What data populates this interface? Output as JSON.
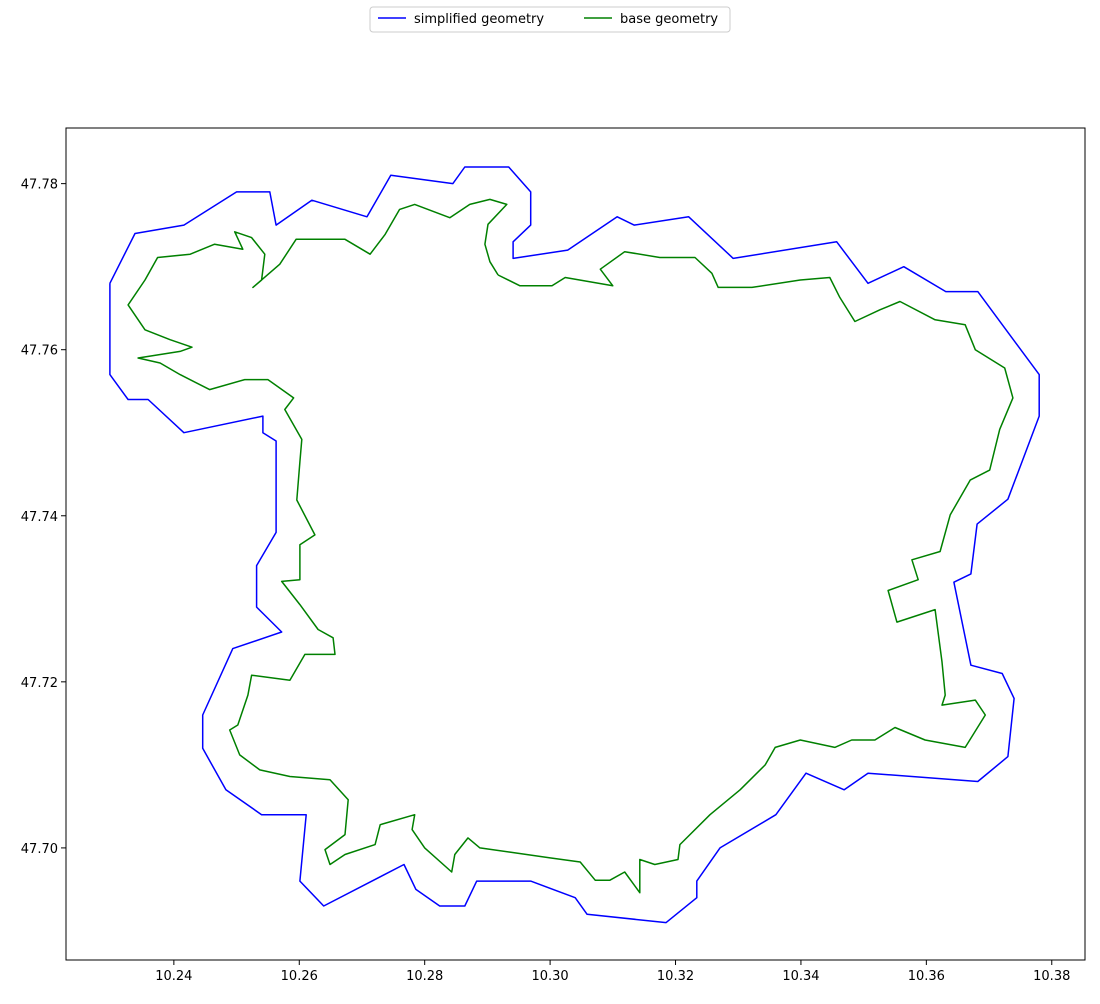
{
  "chart_data": {
    "type": "line",
    "legend": "upper center",
    "xlim": [
      10.2228,
      10.3853
    ],
    "ylim": [
      47.6865,
      47.7867
    ],
    "xticks": [
      10.24,
      10.26,
      10.28,
      {
        "value": 10.3,
        "label": "10.30"
      },
      10.32,
      10.34,
      10.36,
      10.38
    ],
    "yticks": [
      {
        "value": 47.7,
        "label": "47.70"
      },
      47.72,
      47.74,
      47.76,
      47.78
    ],
    "series": [
      {
        "name": "simplified geometry",
        "color": "#0000ff",
        "x": [
          10.2298,
          10.2298,
          10.2327,
          10.2359,
          10.2416,
          10.2542,
          10.2542,
          10.2563,
          10.2563,
          10.2532,
          10.2532,
          10.2572,
          10.2494,
          10.2446,
          10.2446,
          10.2483,
          10.254,
          10.2611,
          10.2601,
          10.2639,
          10.2767,
          10.2786,
          10.2824,
          10.2864,
          10.2883,
          10.2969,
          10.304,
          10.3059,
          10.3185,
          10.3234,
          10.3234,
          10.3271,
          10.336,
          10.3408,
          10.3469,
          10.3507,
          10.3682,
          10.373,
          10.374,
          10.3721,
          10.3671,
          10.3644,
          10.3671,
          10.3681,
          10.373,
          10.378,
          10.378,
          10.3682,
          10.3631,
          10.3564,
          10.3507,
          10.3457,
          10.3292,
          10.3221,
          10.3134,
          10.3107,
          10.3028,
          10.2941,
          10.2941,
          10.2969,
          10.2969,
          10.2934,
          10.2864,
          10.2845,
          10.2746,
          10.2708,
          10.262,
          10.2563,
          10.2553,
          10.25,
          10.2416,
          10.2338,
          10.2298
        ],
        "values": [
          47.768,
          47.757,
          47.754,
          47.754,
          47.75,
          47.752,
          47.75,
          47.749,
          47.738,
          47.734,
          47.729,
          47.726,
          47.724,
          47.716,
          47.712,
          47.707,
          47.704,
          47.704,
          47.696,
          47.693,
          47.698,
          47.695,
          47.693,
          47.693,
          47.696,
          47.696,
          47.694,
          47.692,
          47.691,
          47.694,
          47.696,
          47.7,
          47.704,
          47.709,
          47.707,
          47.709,
          47.708,
          47.711,
          47.718,
          47.721,
          47.722,
          47.732,
          47.733,
          47.739,
          47.742,
          47.752,
          47.757,
          47.767,
          47.767,
          47.77,
          47.768,
          47.773,
          47.771,
          47.776,
          47.775,
          47.776,
          47.772,
          47.771,
          47.773,
          47.775,
          47.779,
          47.782,
          47.782,
          47.78,
          47.781,
          47.776,
          47.778,
          47.775,
          47.779,
          47.779,
          47.775,
          47.774,
          47.768
        ]
      },
      {
        "name": "base geometry",
        "color": "#008000",
        "x": [
          10.2917,
          10.2952,
          10.3003,
          10.3024,
          10.31,
          10.308,
          10.3119,
          10.3175,
          10.3231,
          10.3258,
          10.3268,
          10.3322,
          10.3399,
          10.3446,
          10.3462,
          10.3486,
          10.3526,
          10.3558,
          10.3614,
          10.3662,
          10.3678,
          10.3725,
          10.3738,
          10.3717,
          10.3701,
          10.367,
          10.3638,
          10.3622,
          10.3577,
          10.3587,
          10.3539,
          10.3553,
          10.3614,
          10.3625,
          10.363,
          10.3625,
          10.3678,
          10.3694,
          10.3662,
          10.3598,
          10.355,
          10.3518,
          10.3481,
          10.3454,
          10.3399,
          10.3359,
          10.3343,
          10.3303,
          10.3255,
          10.3207,
          10.3204,
          10.3167,
          10.3143,
          10.3143,
          10.3119,
          10.3095,
          10.3072,
          10.3048,
          10.3,
          10.2936,
          10.2888,
          10.2869,
          10.2848,
          10.2843,
          10.28,
          10.278,
          10.2784,
          10.2729,
          10.2721,
          10.2673,
          10.2649,
          10.2641,
          10.2673,
          10.2678,
          10.2649,
          10.2585,
          10.2537,
          10.2505,
          10.2489,
          10.2502,
          10.2518,
          10.2524,
          10.2585,
          10.2609,
          10.2657,
          10.2654,
          10.263,
          10.2601,
          10.2572,
          10.2601,
          10.2601,
          10.2625,
          10.2596,
          10.2601,
          10.2604,
          10.2577,
          10.2591,
          10.255,
          10.2513,
          10.2457,
          10.241,
          10.2378,
          10.2343,
          10.241,
          10.2429,
          10.2394,
          10.2354,
          10.2327,
          10.2354,
          10.2374,
          10.2426,
          10.2465,
          10.251,
          10.2497,
          10.2524,
          10.2545,
          10.254,
          10.2526,
          10.2569,
          10.2595,
          10.2641,
          10.2673,
          10.2713,
          10.2737,
          10.276,
          10.2784,
          10.284,
          10.2872,
          10.2904,
          10.2931,
          10.2901,
          10.2896,
          10.2904,
          10.2917
        ],
        "values": [
          47.769,
          47.7677,
          47.7677,
          47.7687,
          47.7677,
          47.7697,
          47.7718,
          47.7711,
          47.7711,
          47.7692,
          47.7675,
          47.7675,
          47.7684,
          47.7687,
          47.7663,
          47.7634,
          47.7648,
          47.7658,
          47.7636,
          47.763,
          47.76,
          47.7578,
          47.7542,
          47.7504,
          47.7455,
          47.7443,
          47.7401,
          47.7357,
          47.7347,
          47.7323,
          47.731,
          47.7272,
          47.7287,
          47.7224,
          47.7184,
          47.7172,
          47.7178,
          47.716,
          47.7121,
          47.713,
          47.7145,
          47.713,
          47.713,
          47.7121,
          47.713,
          47.7121,
          47.71,
          47.707,
          47.704,
          47.7004,
          47.6986,
          47.698,
          47.6986,
          47.6946,
          47.6971,
          47.6961,
          47.6961,
          47.6983,
          47.6988,
          47.6995,
          47.7,
          47.7012,
          47.6992,
          47.6971,
          47.7,
          47.7022,
          47.704,
          47.7028,
          47.7004,
          47.6992,
          47.698,
          47.6998,
          47.7016,
          47.7058,
          47.7082,
          47.7086,
          47.7094,
          47.7112,
          47.7142,
          47.7148,
          47.7184,
          47.7208,
          47.7202,
          47.7233,
          47.7233,
          47.7253,
          47.7263,
          47.7293,
          47.7321,
          47.7323,
          47.7365,
          47.7377,
          47.7419,
          47.7465,
          47.7492,
          47.7528,
          47.7542,
          47.7564,
          47.7564,
          47.7552,
          47.757,
          47.7584,
          47.759,
          47.7598,
          47.7603,
          47.7612,
          47.7624,
          47.7654,
          47.7684,
          47.7711,
          47.7715,
          47.7727,
          47.7721,
          47.7742,
          47.7735,
          47.7715,
          47.7684,
          47.7675,
          47.7703,
          47.7733,
          47.7733,
          47.7733,
          47.7715,
          47.7739,
          47.7769,
          47.7775,
          47.7759,
          47.7775,
          47.7781,
          47.7775,
          47.7751,
          47.7727,
          47.7706,
          47.769
        ]
      }
    ]
  }
}
